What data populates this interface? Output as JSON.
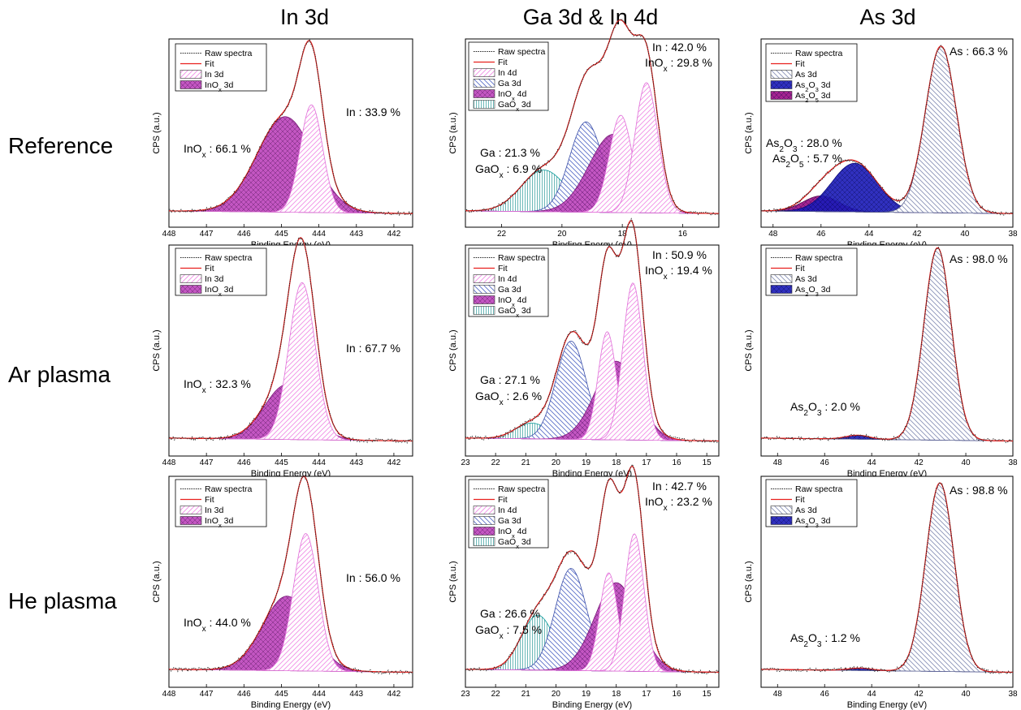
{
  "column_titles": [
    "In 3d",
    "Ga 3d & In 4d",
    "As 3d"
  ],
  "row_labels": [
    "Reference",
    "Ar plasma",
    "He plasma"
  ],
  "colors": {
    "fit": "#e8201e",
    "raw": "#222222",
    "in3d": "#f090e6",
    "ino3d": "#b938b8",
    "ga3d": "#5a6fc8",
    "gao3d": "#18d8da",
    "as3d": "#8a92b8",
    "as2o3": "#1919b8",
    "as2o5": "#9a0c84"
  },
  "chart_data": [
    {
      "type": "line",
      "id": "ref-in3d",
      "xlabel": "Binding Energy (eV)",
      "ylabel": "CPS (a.u.)",
      "xlim": [
        448,
        441.5
      ],
      "xticks": [
        448,
        447,
        446,
        445,
        444,
        443,
        442
      ],
      "legend": [
        {
          "label": "Raw spectra",
          "style": "raw"
        },
        {
          "label": "Fit",
          "style": "fit"
        },
        {
          "label": "In 3d",
          "style": "in3d"
        },
        {
          "label": "InO",
          "sub": "x",
          "suffix": " 3d",
          "style": "ino3d"
        }
      ],
      "peaks": [
        {
          "name": "InOx 3d",
          "center": 444.9,
          "amp": 0.55,
          "width": 0.75,
          "style": "ino3d"
        },
        {
          "name": "In 3d",
          "center": 444.2,
          "amp": 0.62,
          "width": 0.3,
          "style": "in3d"
        }
      ],
      "annotations": [
        {
          "parts": [
            [
              "In : 33.9 %",
              ""
            ]
          ]
        },
        {
          "parts": [
            [
              "InO",
              ""
            ],
            [
              "x",
              "sub"
            ],
            [
              " : 66.1 %",
              ""
            ]
          ]
        }
      ]
    },
    {
      "type": "line",
      "id": "ref-ga3d-in4d",
      "xlabel": "Binding Energy (eV)",
      "ylabel": "CPS (a.u.)",
      "xlim": [
        23.2,
        14.8
      ],
      "xticks": [
        22,
        20,
        18,
        16
      ],
      "legend": [
        {
          "label": "Raw spectra",
          "style": "raw"
        },
        {
          "label": "Fit",
          "style": "fit"
        },
        {
          "label": "In 4d",
          "style": "in3d"
        },
        {
          "label": "Ga 3d",
          "style": "ga3d"
        },
        {
          "label": "InO",
          "sub": "x",
          "suffix": " 4d",
          "style": "ino3d"
        },
        {
          "label": "GaO",
          "sub": "x",
          "suffix": " 3d",
          "style": "gao3d"
        }
      ],
      "peaks": [
        {
          "name": "GaOx 3d",
          "center": 20.6,
          "amp": 0.24,
          "width": 0.75,
          "style": "gao3d"
        },
        {
          "name": "Ga 3d",
          "center": 19.2,
          "amp": 0.52,
          "width": 0.55,
          "style": "ga3d"
        },
        {
          "name": "InOx 4d",
          "center": 18.3,
          "amp": 0.45,
          "width": 0.8,
          "style": "ino3d"
        },
        {
          "name": "In 4d 5/2",
          "center": 18.05,
          "amp": 0.56,
          "width": 0.38,
          "style": "in3d"
        },
        {
          "name": "In 4d 3/2",
          "center": 17.2,
          "amp": 0.75,
          "width": 0.38,
          "style": "in3d"
        }
      ],
      "annotations": [
        {
          "parts": [
            [
              "In : 42.0 %",
              ""
            ]
          ]
        },
        {
          "parts": [
            [
              "InO",
              ""
            ],
            [
              "x",
              "sub"
            ],
            [
              " : 29.8 %",
              ""
            ]
          ]
        },
        {
          "parts": [
            [
              "Ga : 21.3 %",
              ""
            ]
          ]
        },
        {
          "parts": [
            [
              "GaO",
              ""
            ],
            [
              "x",
              "sub"
            ],
            [
              " : 6.9 %",
              ""
            ]
          ]
        }
      ]
    },
    {
      "type": "line",
      "id": "ref-as3d",
      "xlabel": "Binding Energy (eV)",
      "ylabel": "CPS (a.u.)",
      "xlim": [
        48.5,
        38
      ],
      "xticks": [
        48,
        46,
        44,
        42,
        40,
        38
      ],
      "legend": [
        {
          "label": "Raw spectra",
          "style": "raw"
        },
        {
          "label": "Fit",
          "style": "fit"
        },
        {
          "label": "As 3d",
          "style": "as3d"
        },
        {
          "label": "As",
          "sub": "2",
          "mid": "O",
          "sub2": "3",
          "suffix": " 3d",
          "style": "as2o3"
        },
        {
          "label": "As",
          "sub": "2",
          "mid": "O",
          "sub2": "5",
          "suffix": " 3d",
          "style": "as2o5"
        }
      ],
      "peaks": [
        {
          "name": "As2O5 3d",
          "center": 46.0,
          "amp": 0.09,
          "width": 0.75,
          "style": "as2o5"
        },
        {
          "name": "As2O3 3d",
          "center": 44.6,
          "amp": 0.28,
          "width": 0.95,
          "style": "as2o3"
        },
        {
          "name": "As 3d",
          "center": 41.0,
          "amp": 0.96,
          "width": 0.65,
          "style": "as3d"
        }
      ],
      "annotations": [
        {
          "parts": [
            [
              "As : 66.3 %",
              ""
            ]
          ]
        },
        {
          "parts": [
            [
              "As",
              ""
            ],
            [
              "2",
              "sub"
            ],
            [
              "O",
              ""
            ],
            [
              "3",
              "sub"
            ],
            [
              " : 28.0 %",
              ""
            ]
          ]
        },
        {
          "parts": [
            [
              "As",
              ""
            ],
            [
              "2",
              "sub"
            ],
            [
              "O",
              ""
            ],
            [
              "5",
              "sub"
            ],
            [
              " : 5.7 %",
              ""
            ]
          ]
        }
      ]
    },
    {
      "type": "line",
      "id": "ar-in3d",
      "xlabel": "Binding Energy (eV)",
      "ylabel": "CPS (a.u.)",
      "xlim": [
        448,
        441.5
      ],
      "xticks": [
        448,
        447,
        446,
        445,
        444,
        443,
        442
      ],
      "legend": [
        {
          "label": "Raw spectra",
          "style": "raw"
        },
        {
          "label": "Fit",
          "style": "fit"
        },
        {
          "label": "In 3d",
          "style": "in3d"
        },
        {
          "label": "InO",
          "sub": "x",
          "suffix": " 3d",
          "style": "ino3d"
        }
      ],
      "peaks": [
        {
          "name": "InOx 3d",
          "center": 444.85,
          "amp": 0.28,
          "width": 0.6,
          "style": "ino3d"
        },
        {
          "name": "In 3d",
          "center": 444.45,
          "amp": 0.8,
          "width": 0.35,
          "style": "in3d"
        }
      ],
      "annotations": [
        {
          "parts": [
            [
              "In : 67.7 %",
              ""
            ]
          ]
        },
        {
          "parts": [
            [
              "InO",
              ""
            ],
            [
              "x",
              "sub"
            ],
            [
              " : 32.3 %",
              ""
            ]
          ]
        }
      ]
    },
    {
      "type": "line",
      "id": "ar-ga3d-in4d",
      "xlabel": "Binding Energy (eV)",
      "ylabel": "CPS (a.u.)",
      "xlim": [
        23,
        14.6
      ],
      "xticks": [
        23,
        22,
        21,
        20,
        19,
        18,
        17,
        16,
        15
      ],
      "legend": [
        {
          "label": "Raw spectra",
          "style": "raw"
        },
        {
          "label": "Fit",
          "style": "fit"
        },
        {
          "label": "In 4d",
          "style": "in3d"
        },
        {
          "label": "Ga 3d",
          "style": "ga3d"
        },
        {
          "label": "InO",
          "sub": "x",
          "suffix": " 4d",
          "style": "ino3d"
        },
        {
          "label": "GaO",
          "sub": "x",
          "suffix": " 3d",
          "style": "gao3d"
        }
      ],
      "peaks": [
        {
          "name": "GaOx 3d",
          "center": 20.8,
          "amp": 0.08,
          "width": 0.55,
          "style": "gao3d"
        },
        {
          "name": "Ga 3d",
          "center": 19.5,
          "amp": 0.5,
          "width": 0.5,
          "style": "ga3d"
        },
        {
          "name": "InOx 4d",
          "center": 18.0,
          "amp": 0.4,
          "width": 0.7,
          "style": "ino3d"
        },
        {
          "name": "In 4d 5/2",
          "center": 18.3,
          "amp": 0.55,
          "width": 0.3,
          "style": "in3d"
        },
        {
          "name": "In 4d 3/2",
          "center": 17.45,
          "amp": 0.8,
          "width": 0.33,
          "style": "in3d"
        }
      ],
      "annotations": [
        {
          "parts": [
            [
              "In : 50.9 %",
              ""
            ]
          ]
        },
        {
          "parts": [
            [
              "InO",
              ""
            ],
            [
              "x",
              "sub"
            ],
            [
              " : 19.4 %",
              ""
            ]
          ]
        },
        {
          "parts": [
            [
              "Ga : 27.1 %",
              ""
            ]
          ]
        },
        {
          "parts": [
            [
              "GaO",
              ""
            ],
            [
              "x",
              "sub"
            ],
            [
              " : 2.6 %",
              ""
            ]
          ]
        }
      ]
    },
    {
      "type": "line",
      "id": "ar-as3d",
      "xlabel": "Binding Energy (eV)",
      "ylabel": "CPS (a.u.)",
      "xlim": [
        48.7,
        38
      ],
      "xticks": [
        48,
        46,
        44,
        42,
        40,
        38
      ],
      "legend": [
        {
          "label": "Raw spectra",
          "style": "raw"
        },
        {
          "label": "Fit",
          "style": "fit"
        },
        {
          "label": "As 3d",
          "style": "as3d"
        },
        {
          "label": "As",
          "sub": "2",
          "mid": "O",
          "sub2": "3",
          "suffix": " 3d",
          "style": "as2o3"
        }
      ],
      "peaks": [
        {
          "name": "As2O3 3d",
          "center": 44.6,
          "amp": 0.02,
          "width": 0.5,
          "style": "as2o3"
        },
        {
          "name": "As 3d",
          "center": 41.2,
          "amp": 0.98,
          "width": 0.58,
          "style": "as3d"
        }
      ],
      "annotations": [
        {
          "parts": [
            [
              "As : 98.0 %",
              ""
            ]
          ]
        },
        {
          "parts": [
            [
              "As",
              ""
            ],
            [
              "2",
              "sub"
            ],
            [
              "O",
              ""
            ],
            [
              "3",
              "sub"
            ],
            [
              " : 2.0 %",
              ""
            ]
          ]
        }
      ]
    },
    {
      "type": "line",
      "id": "he-in3d",
      "xlabel": "Binding Energy (eV)",
      "ylabel": "CPS (a.u.)",
      "xlim": [
        448,
        441.5
      ],
      "xticks": [
        448,
        447,
        446,
        445,
        444,
        443,
        442
      ],
      "legend": [
        {
          "label": "Raw spectra",
          "style": "raw"
        },
        {
          "label": "Fit",
          "style": "fit"
        },
        {
          "label": "In 3d",
          "style": "in3d"
        },
        {
          "label": "InO",
          "sub": "x",
          "suffix": " 3d",
          "style": "ino3d"
        }
      ],
      "peaks": [
        {
          "name": "InOx 3d",
          "center": 444.85,
          "amp": 0.38,
          "width": 0.65,
          "style": "ino3d"
        },
        {
          "name": "In 3d",
          "center": 444.35,
          "amp": 0.7,
          "width": 0.33,
          "style": "in3d"
        }
      ],
      "annotations": [
        {
          "parts": [
            [
              "In : 56.0 %",
              ""
            ]
          ]
        },
        {
          "parts": [
            [
              "InO",
              ""
            ],
            [
              "x",
              "sub"
            ],
            [
              " : 44.0 %",
              ""
            ]
          ]
        }
      ]
    },
    {
      "type": "line",
      "id": "he-ga3d-in4d",
      "xlabel": "Binding Energy (eV)",
      "ylabel": "CPS (a.u.)",
      "xlim": [
        23,
        14.6
      ],
      "xticks": [
        23,
        22,
        21,
        20,
        19,
        18,
        17,
        16,
        15
      ],
      "legend": [
        {
          "label": "Raw spectra",
          "style": "raw"
        },
        {
          "label": "Fit",
          "style": "fit"
        },
        {
          "label": "In 4d",
          "style": "in3d"
        },
        {
          "label": "Ga 3d",
          "style": "ga3d"
        },
        {
          "label": "InO",
          "sub": "x",
          "suffix": " 4d",
          "style": "ino3d"
        },
        {
          "label": "GaO",
          "sub": "x",
          "suffix": " 3d",
          "style": "gao3d"
        }
      ],
      "peaks": [
        {
          "name": "GaOx 3d",
          "center": 20.6,
          "amp": 0.28,
          "width": 0.55,
          "style": "gao3d"
        },
        {
          "name": "Ga 3d",
          "center": 19.5,
          "amp": 0.52,
          "width": 0.52,
          "style": "ga3d"
        },
        {
          "name": "InOx 4d",
          "center": 18.0,
          "amp": 0.45,
          "width": 0.72,
          "style": "ino3d"
        },
        {
          "name": "In 4d 5/2",
          "center": 18.25,
          "amp": 0.5,
          "width": 0.3,
          "style": "in3d"
        },
        {
          "name": "In 4d 3/2",
          "center": 17.4,
          "amp": 0.7,
          "width": 0.32,
          "style": "in3d"
        }
      ],
      "annotations": [
        {
          "parts": [
            [
              "In : 42.7 %",
              ""
            ]
          ]
        },
        {
          "parts": [
            [
              "InO",
              ""
            ],
            [
              "x",
              "sub"
            ],
            [
              " : 23.2 %",
              ""
            ]
          ]
        },
        {
          "parts": [
            [
              "Ga : 26.6 %",
              ""
            ]
          ]
        },
        {
          "parts": [
            [
              "GaO",
              ""
            ],
            [
              "x",
              "sub"
            ],
            [
              " : 7.5 %",
              ""
            ]
          ]
        }
      ]
    },
    {
      "type": "line",
      "id": "he-as3d",
      "xlabel": "Binding Energy (eV)",
      "ylabel": "CPS (a.u.)",
      "xlim": [
        48.7,
        38
      ],
      "xticks": [
        48,
        46,
        44,
        42,
        40,
        38
      ],
      "legend": [
        {
          "label": "Raw spectra",
          "style": "raw"
        },
        {
          "label": "Fit",
          "style": "fit"
        },
        {
          "label": "As 3d",
          "style": "as3d"
        },
        {
          "label": "As",
          "sub": "2",
          "mid": "O",
          "sub2": "3",
          "suffix": " 3d",
          "style": "as2o3"
        }
      ],
      "peaks": [
        {
          "name": "As2O3 3d",
          "center": 44.5,
          "amp": 0.012,
          "width": 0.5,
          "style": "as2o3"
        },
        {
          "name": "As 3d",
          "center": 41.1,
          "amp": 0.96,
          "width": 0.6,
          "style": "as3d"
        }
      ],
      "annotations": [
        {
          "parts": [
            [
              "As : 98.8 %",
              ""
            ]
          ]
        },
        {
          "parts": [
            [
              "As",
              ""
            ],
            [
              "2",
              "sub"
            ],
            [
              "O",
              ""
            ],
            [
              "3",
              "sub"
            ],
            [
              " : 1.2 %",
              ""
            ]
          ]
        }
      ]
    }
  ]
}
